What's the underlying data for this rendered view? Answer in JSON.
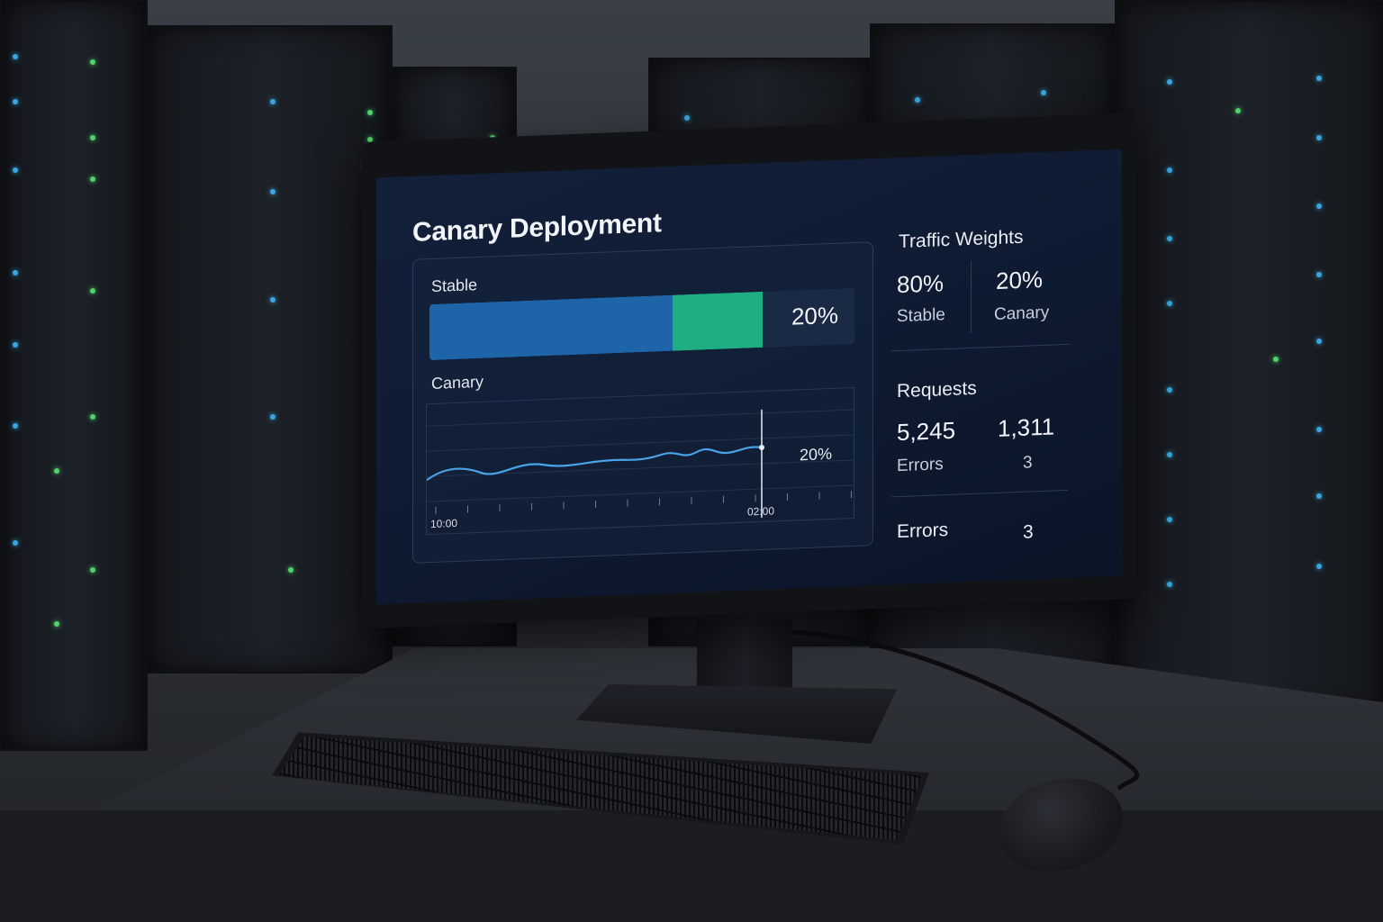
{
  "dashboard": {
    "title": "Canary Deployment",
    "traffic_bar": {
      "label": "Stable",
      "stable_fraction": 0.8,
      "canary_fraction": 0.2,
      "percent_label": "20%"
    },
    "canary_chart": {
      "label": "Canary",
      "x_start_label": "10:00",
      "x_end_label": "02:00",
      "value_label": "20%"
    },
    "traffic_weights": {
      "heading": "Traffic Weights",
      "stable_value": "80%",
      "stable_label": "Stable",
      "canary_value": "20%",
      "canary_label": "Canary"
    },
    "requests": {
      "heading": "Requests",
      "stable_value": "5,245",
      "stable_sub": "Errors",
      "canary_value": "1,311",
      "canary_sub": "3"
    },
    "errors": {
      "heading": "Errors",
      "value": "3"
    }
  },
  "colors": {
    "stable": "#1d64a8",
    "canary": "#1fae83",
    "line": "#4aa3e8",
    "screen_bg": "#0e1a30"
  }
}
